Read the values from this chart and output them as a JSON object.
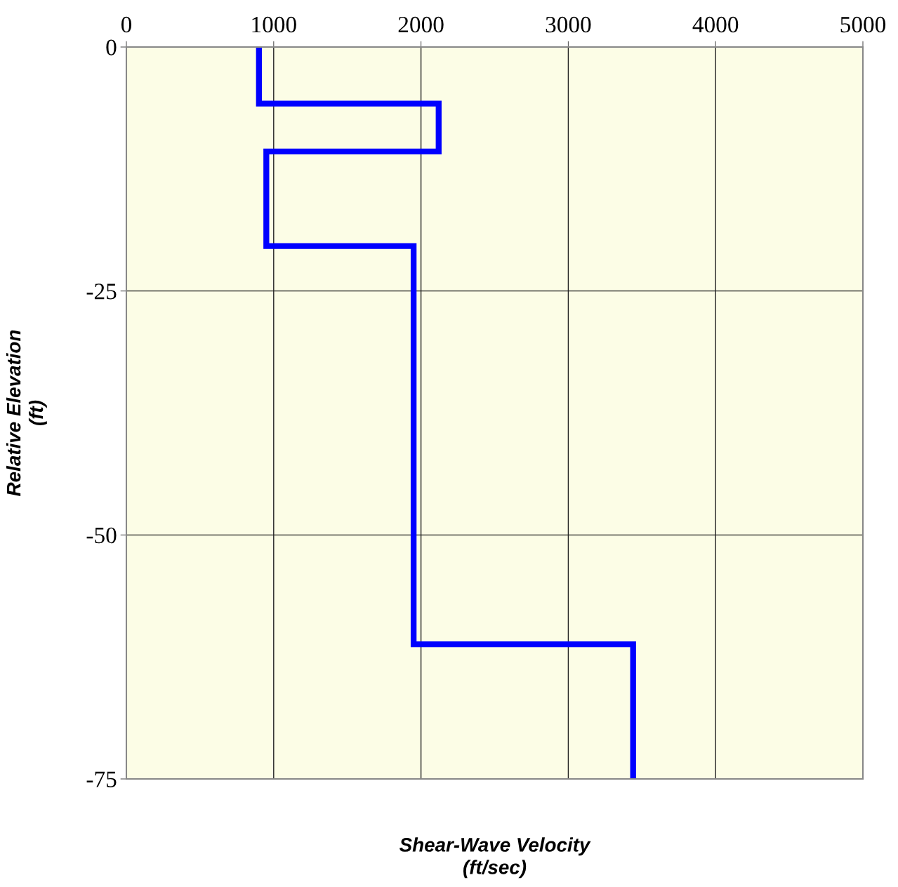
{
  "chart_data": {
    "type": "line",
    "xlabel": "Shear-Wave Velocity\n(ft/sec)",
    "ylabel": "Relative Elevation\n(ft)",
    "series": [
      {
        "color": "#0000ff",
        "x": [
          900,
          900,
          2120,
          2120,
          950,
          950,
          1950,
          1950,
          3440,
          3440
        ],
        "values": [
          0,
          -5.8,
          -5.8,
          -10.7,
          -10.7,
          -20.4,
          -20.4,
          -61.2,
          -61.2,
          -75
        ]
      }
    ],
    "xlim": [
      0,
      5000
    ],
    "xticks": [
      0,
      1000,
      2000,
      3000,
      4000,
      5000
    ],
    "ylim": [
      -75,
      0
    ],
    "yticks": [
      0,
      -25,
      -50,
      -75
    ],
    "grid": true,
    "line_style": "solid",
    "marker": "none"
  }
}
